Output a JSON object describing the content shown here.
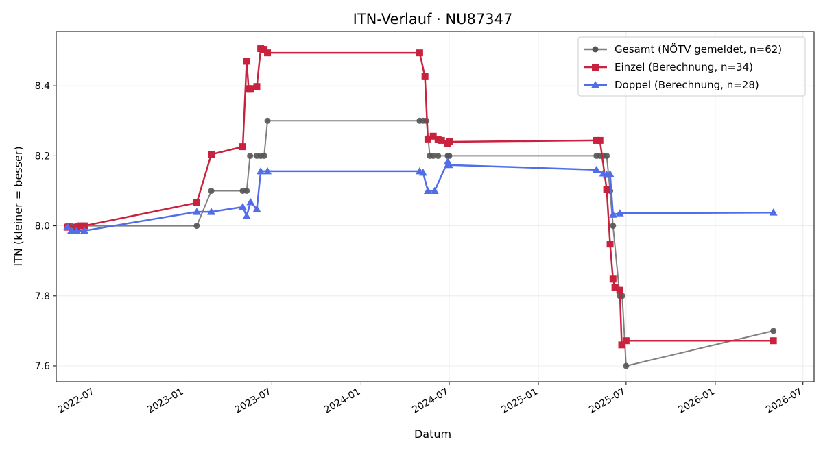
{
  "chart_data": {
    "type": "line",
    "title": "ITN-Verlauf · NU87347",
    "xlabel": "Datum",
    "ylabel": "ITN  (kleiner = besser)",
    "xlim": [
      "2022-04-12",
      "2026-07-24"
    ],
    "ylim": [
      7.555,
      8.555
    ],
    "x_ticks": [
      "2022-07",
      "2023-01",
      "2023-07",
      "2024-01",
      "2024-07",
      "2025-01",
      "2025-07",
      "2026-01",
      "2026-07"
    ],
    "y_ticks": [
      7.6,
      7.8,
      8.0,
      8.2,
      8.4
    ],
    "grid": true,
    "legend_position": "top-right",
    "series": [
      {
        "name": "Gesamt (NÖTV gemeldet, n=62)",
        "color": "#555555",
        "marker": "circle",
        "points": [
          [
            "2022-05-05",
            8.0
          ],
          [
            "2022-05-13",
            8.0
          ],
          [
            "2022-05-24",
            8.0
          ],
          [
            "2022-06-01",
            8.0
          ],
          [
            "2022-06-09",
            8.0
          ],
          [
            "2023-01-27",
            8.0
          ],
          [
            "2023-02-26",
            8.1
          ],
          [
            "2023-05-02",
            8.1
          ],
          [
            "2023-05-10",
            8.1
          ],
          [
            "2023-05-17",
            8.2
          ],
          [
            "2023-05-31",
            8.2
          ],
          [
            "2023-06-08",
            8.2
          ],
          [
            "2023-06-15",
            8.2
          ],
          [
            "2023-06-22",
            8.3
          ],
          [
            "2024-05-01",
            8.3
          ],
          [
            "2024-05-08",
            8.3
          ],
          [
            "2024-05-15",
            8.3
          ],
          [
            "2024-05-22",
            8.2
          ],
          [
            "2024-05-29",
            8.2
          ],
          [
            "2024-06-08",
            8.2
          ],
          [
            "2024-06-28",
            8.2
          ],
          [
            "2024-07-01",
            8.2
          ],
          [
            "2025-05-01",
            8.2
          ],
          [
            "2025-05-08",
            8.2
          ],
          [
            "2025-05-15",
            8.2
          ],
          [
            "2025-05-22",
            8.2
          ],
          [
            "2025-05-29",
            8.1
          ],
          [
            "2025-06-04",
            8.0
          ],
          [
            "2025-06-18",
            7.8
          ],
          [
            "2025-06-23",
            7.8
          ],
          [
            "2025-07-01",
            7.6
          ],
          [
            "2026-05-01",
            7.7
          ]
        ]
      },
      {
        "name": "Einzel (Berechnung, n=34)",
        "color": "#c8223f",
        "marker": "square",
        "points": [
          [
            "2022-05-05",
            7.996
          ],
          [
            "2022-05-24",
            7.996
          ],
          [
            "2022-06-01",
            8.0
          ],
          [
            "2022-06-09",
            8.0
          ],
          [
            "2023-01-27",
            8.066
          ],
          [
            "2023-02-26",
            8.204
          ],
          [
            "2023-05-02",
            8.226
          ],
          [
            "2023-05-10",
            8.47
          ],
          [
            "2023-05-14",
            8.392
          ],
          [
            "2023-05-18",
            8.392
          ],
          [
            "2023-05-31",
            8.398
          ],
          [
            "2023-06-08",
            8.506
          ],
          [
            "2023-06-15",
            8.504
          ],
          [
            "2023-06-22",
            8.494
          ],
          [
            "2024-05-01",
            8.494
          ],
          [
            "2024-05-12",
            8.426
          ],
          [
            "2024-05-18",
            8.248
          ],
          [
            "2024-05-29",
            8.256
          ],
          [
            "2024-06-08",
            8.246
          ],
          [
            "2024-06-15",
            8.244
          ],
          [
            "2024-06-28",
            8.236
          ],
          [
            "2024-07-01",
            8.24
          ],
          [
            "2025-05-01",
            8.244
          ],
          [
            "2025-05-08",
            8.244
          ],
          [
            "2025-05-22",
            8.104
          ],
          [
            "2025-05-29",
            7.948
          ],
          [
            "2025-06-04",
            7.848
          ],
          [
            "2025-06-08",
            7.824
          ],
          [
            "2025-06-18",
            7.816
          ],
          [
            "2025-06-22",
            7.66
          ],
          [
            "2025-07-01",
            7.672
          ],
          [
            "2026-05-01",
            7.672
          ]
        ]
      },
      {
        "name": "Doppel (Berechnung, n=28)",
        "color": "#4f6ee8",
        "marker": "triangle",
        "points": [
          [
            "2022-05-05",
            7.998
          ],
          [
            "2022-05-13",
            7.986
          ],
          [
            "2022-05-24",
            7.986
          ],
          [
            "2022-06-09",
            7.986
          ],
          [
            "2023-01-27",
            8.04
          ],
          [
            "2023-02-26",
            8.04
          ],
          [
            "2023-05-02",
            8.054
          ],
          [
            "2023-05-10",
            8.028
          ],
          [
            "2023-05-18",
            8.068
          ],
          [
            "2023-05-31",
            8.048
          ],
          [
            "2023-06-08",
            8.156
          ],
          [
            "2023-06-22",
            8.156
          ],
          [
            "2024-05-01",
            8.156
          ],
          [
            "2024-05-08",
            8.152
          ],
          [
            "2024-05-18",
            8.1
          ],
          [
            "2024-06-01",
            8.1
          ],
          [
            "2024-06-28",
            8.184
          ],
          [
            "2024-07-01",
            8.174
          ],
          [
            "2025-05-01",
            8.16
          ],
          [
            "2025-05-15",
            8.15
          ],
          [
            "2025-05-22",
            8.146
          ],
          [
            "2025-05-29",
            8.148
          ],
          [
            "2025-06-04",
            8.032
          ],
          [
            "2025-06-18",
            8.036
          ],
          [
            "2026-05-01",
            8.038
          ]
        ]
      }
    ]
  }
}
